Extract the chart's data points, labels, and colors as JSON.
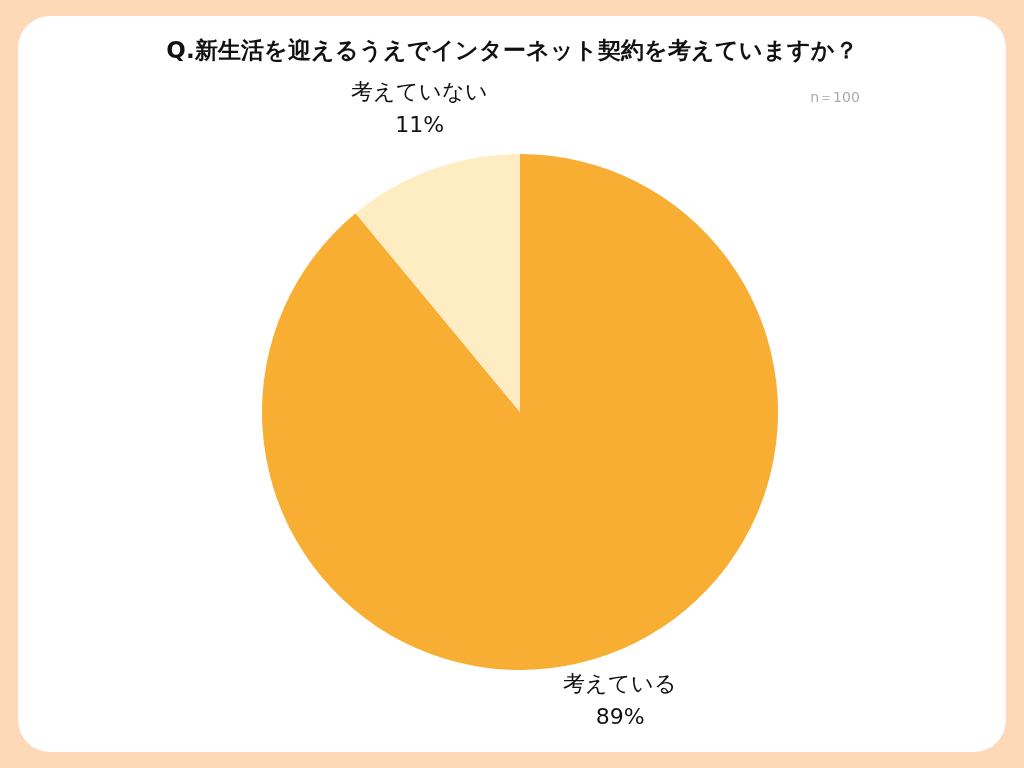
{
  "chart_data": {
    "type": "pie",
    "title": "Q.新生活を迎えるうえでインターネット契約を考えていますか？",
    "categories": [
      "考えている",
      "考えていない"
    ],
    "values": [
      89,
      11
    ],
    "value_labels": [
      "89%",
      "11%"
    ],
    "colors": [
      "#f8ad33",
      "#feedc2"
    ],
    "annotations": [
      "n＝100"
    ]
  }
}
